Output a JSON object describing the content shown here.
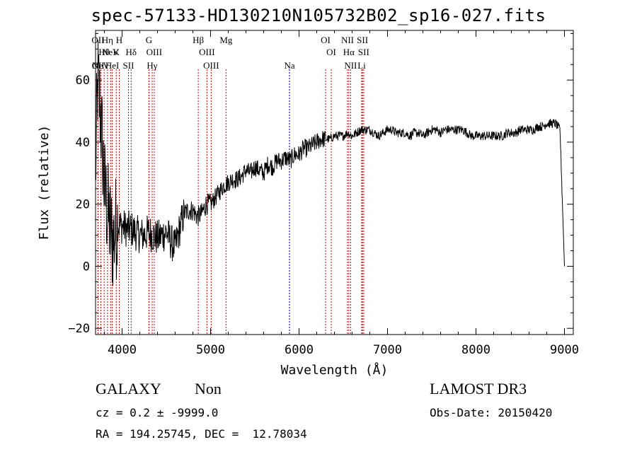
{
  "title": "spec-57133-HD130210N105732B02_sp16-027.fits",
  "chart_data": {
    "type": "line",
    "title": "spec-57133-HD130210N105732B02_sp16-027.fits",
    "xlabel": "Wavelength (Å)",
    "ylabel": "Flux (relative)",
    "xlim": [
      3700,
      9100
    ],
    "ylim": [
      -22,
      76
    ],
    "x_ticks": [
      4000,
      5000,
      6000,
      7000,
      8000,
      9000
    ],
    "y_ticks": [
      -20,
      0,
      20,
      40,
      60
    ],
    "series": [
      {
        "name": "spectrum",
        "x": [
          3700,
          3725,
          3750,
          3775,
          3800,
          3825,
          3850,
          3875,
          3900,
          3925,
          3950,
          3975,
          4000,
          4050,
          4100,
          4150,
          4200,
          4250,
          4300,
          4350,
          4400,
          4450,
          4500,
          4550,
          4600,
          4650,
          4700,
          4750,
          4800,
          4850,
          4900,
          4950,
          5000,
          5050,
          5100,
          5150,
          5200,
          5250,
          5300,
          5350,
          5400,
          5450,
          5500,
          5550,
          5600,
          5650,
          5700,
          5750,
          5800,
          5850,
          5900,
          5950,
          6000,
          6050,
          6100,
          6150,
          6200,
          6250,
          6300,
          6350,
          6400,
          6450,
          6500,
          6550,
          6600,
          6650,
          6700,
          6750,
          6800,
          6850,
          6900,
          6950,
          7000,
          7050,
          7100,
          7150,
          7200,
          7250,
          7300,
          7350,
          7400,
          7450,
          7500,
          7550,
          7600,
          7650,
          7700,
          7750,
          7800,
          7850,
          7900,
          7950,
          8000,
          8050,
          8100,
          8150,
          8200,
          8250,
          8300,
          8350,
          8400,
          8450,
          8500,
          8550,
          8600,
          8650,
          8700,
          8750,
          8800,
          8850,
          8900,
          8950,
          9000
        ],
        "y": [
          30,
          60,
          52,
          40,
          25,
          20,
          15,
          10,
          8,
          12,
          14,
          13,
          13,
          12,
          12,
          11,
          10,
          10,
          11,
          10,
          9,
          10,
          11,
          8,
          6,
          12,
          17,
          18,
          18,
          16,
          17,
          20,
          20,
          22,
          24,
          26,
          27,
          28,
          28,
          29,
          31,
          30,
          32,
          31,
          30,
          33,
          32,
          34,
          34,
          35,
          34,
          36,
          36,
          38,
          38,
          39,
          40,
          41,
          41,
          41,
          42,
          42,
          42,
          43,
          42,
          43,
          44,
          44,
          44,
          43,
          42,
          43,
          44,
          44,
          43,
          43,
          43,
          42,
          43,
          43,
          42,
          43,
          44,
          44,
          43,
          44,
          44,
          44,
          44,
          44,
          43,
          42,
          42,
          42,
          42,
          42,
          42,
          42,
          42,
          43,
          43,
          43,
          44,
          44,
          44,
          44,
          45,
          45,
          46,
          46,
          46,
          44,
          0
        ]
      }
    ],
    "line_annotations": [
      {
        "label": "NeV",
        "x": 3426,
        "row": 3
      },
      {
        "label": "NeV",
        "x": 3870,
        "row": 2
      },
      {
        "label": "OII",
        "x": 3727,
        "row": 1
      },
      {
        "label": "Hη",
        "x": 3835,
        "row": 1
      },
      {
        "label": "H",
        "x": 3968,
        "row": 1
      },
      {
        "label": "Hθ",
        "x": 3797,
        "row": 2
      },
      {
        "label": "K",
        "x": 3934,
        "row": 2
      },
      {
        "label": "Hδ",
        "x": 4102,
        "row": 2
      },
      {
        "label": "OII",
        "x": 3729,
        "row": 3
      },
      {
        "label": "HeI",
        "x": 3889,
        "row": 3
      },
      {
        "label": "SII",
        "x": 4072,
        "row": 3
      },
      {
        "label": "G",
        "x": 4304,
        "row": 1
      },
      {
        "label": "OIII",
        "x": 4363,
        "row": 2
      },
      {
        "label": "Hγ",
        "x": 4340,
        "row": 3
      },
      {
        "label": "Hβ",
        "x": 4861,
        "row": 1
      },
      {
        "label": "OIII",
        "x": 4959,
        "row": 2
      },
      {
        "label": "OIII",
        "x": 5007,
        "row": 3
      },
      {
        "label": "Mg",
        "x": 5175,
        "row": 1
      },
      {
        "label": "Na",
        "x": 5893,
        "row": 3
      },
      {
        "label": "OI",
        "x": 6300,
        "row": 1
      },
      {
        "label": "OI",
        "x": 6364,
        "row": 2
      },
      {
        "label": "NII",
        "x": 6548,
        "row": 1
      },
      {
        "label": "SII",
        "x": 6717,
        "row": 1
      },
      {
        "label": "Hα",
        "x": 6563,
        "row": 2
      },
      {
        "label": "SII",
        "x": 6731,
        "row": 2
      },
      {
        "label": "NII",
        "x": 6583,
        "row": 3
      },
      {
        "label": "Li",
        "x": 6708,
        "row": 3
      }
    ]
  },
  "info": {
    "class": "GALAXY",
    "subclass": "Non",
    "survey": "LAMOST DR3",
    "cz": "cz = 0.2 ± -9999.0",
    "obs_date": "Obs-Date: 20150420",
    "coords": "RA = 194.25745, DEC =  12.78034"
  },
  "colors": {
    "axis": "#000000",
    "spectrum": "#000000",
    "lines": "#cc0000",
    "blue_marker": "#3333cc"
  }
}
